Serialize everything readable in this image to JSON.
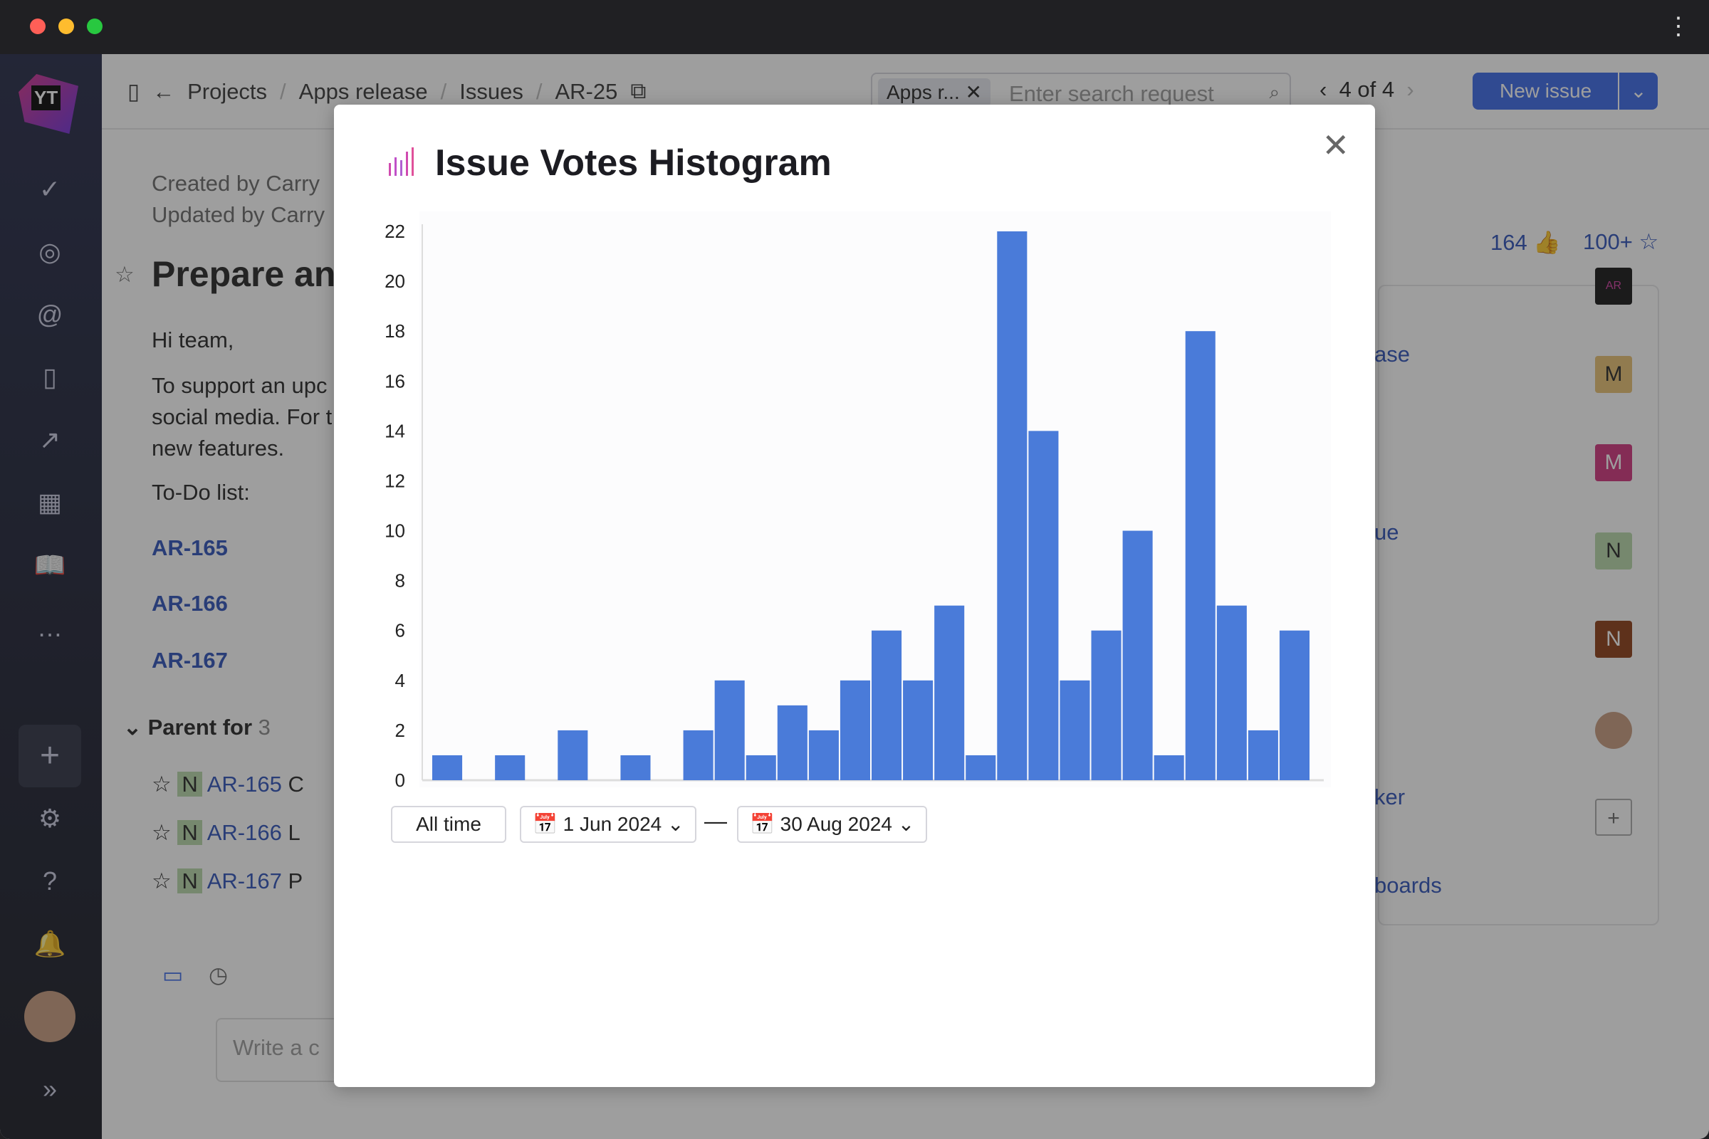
{
  "window": {
    "traffic_lights": [
      "#ff5f57",
      "#febc2e",
      "#28c840"
    ],
    "menu_icon": "kebab-vertical-icon"
  },
  "sidebar": {
    "logo": "YT",
    "icons": [
      "check-circle-icon",
      "lifebuoy-icon",
      "spiral-icon",
      "board-icon",
      "chart-line-icon",
      "grid-icon",
      "book-open-icon",
      "more-icon",
      "plus-icon",
      "gear-icon",
      "help-icon",
      "bell-icon",
      "avatar",
      "expand-icon"
    ]
  },
  "breadcrumb": {
    "items": [
      "Projects",
      "Apps release",
      "Issues",
      "AR-25"
    ]
  },
  "search": {
    "chip": "Apps r...",
    "placeholder": "Enter search request"
  },
  "pager": {
    "text": "4 of 4"
  },
  "new_issue": {
    "label": "New issue"
  },
  "issue": {
    "created": "Created by Carry",
    "updated": "Updated by Carry",
    "title": "Prepare an",
    "body": [
      "Hi team,",
      "To support an upc",
      "social media. For t",
      "new features.",
      "To-Do list:"
    ],
    "todo": [
      "AR-165",
      "AR-166",
      "AR-167"
    ],
    "parent_for": {
      "label": "Parent for",
      "count": "3"
    },
    "children": [
      {
        "badge": "N",
        "id": "AR-165",
        "title": "C"
      },
      {
        "badge": "N",
        "id": "AR-166",
        "title": "L"
      },
      {
        "badge": "N",
        "id": "AR-167",
        "title": "P"
      }
    ],
    "comment_placeholder": "Write a c",
    "votes": "164",
    "stars": "100+"
  },
  "right_panel": {
    "fragments": [
      "ase",
      "ue",
      "ker",
      "boards"
    ],
    "avatars": [
      {
        "text": "AR",
        "color": "#111"
      },
      {
        "text": "M",
        "color": "#e8c070"
      },
      {
        "text": "M",
        "color": "#d0307a"
      },
      {
        "text": "N",
        "color": "#b6d8a8"
      },
      {
        "text": "N",
        "color": "#8a3a12"
      }
    ]
  },
  "modal": {
    "title": "Issue Votes Histogram",
    "close": "close-icon",
    "all_time": "All time",
    "from": "1 Jun 2024",
    "to": "30 Aug 2024",
    "dash": "—"
  },
  "chart_data": {
    "type": "bar",
    "title": "Issue Votes Histogram",
    "xlabel": "",
    "ylabel": "",
    "ylim": [
      0,
      22
    ],
    "yticks": [
      0,
      2,
      4,
      6,
      8,
      10,
      12,
      14,
      16,
      18,
      20,
      22
    ],
    "values": [
      1,
      0,
      1,
      0,
      2,
      0,
      1,
      0,
      2,
      4,
      1,
      3,
      2,
      4,
      6,
      4,
      7,
      1,
      22,
      14,
      4,
      6,
      10,
      1,
      18,
      7,
      2,
      6
    ],
    "bar_color": "#4a7bd9",
    "grid": false
  }
}
